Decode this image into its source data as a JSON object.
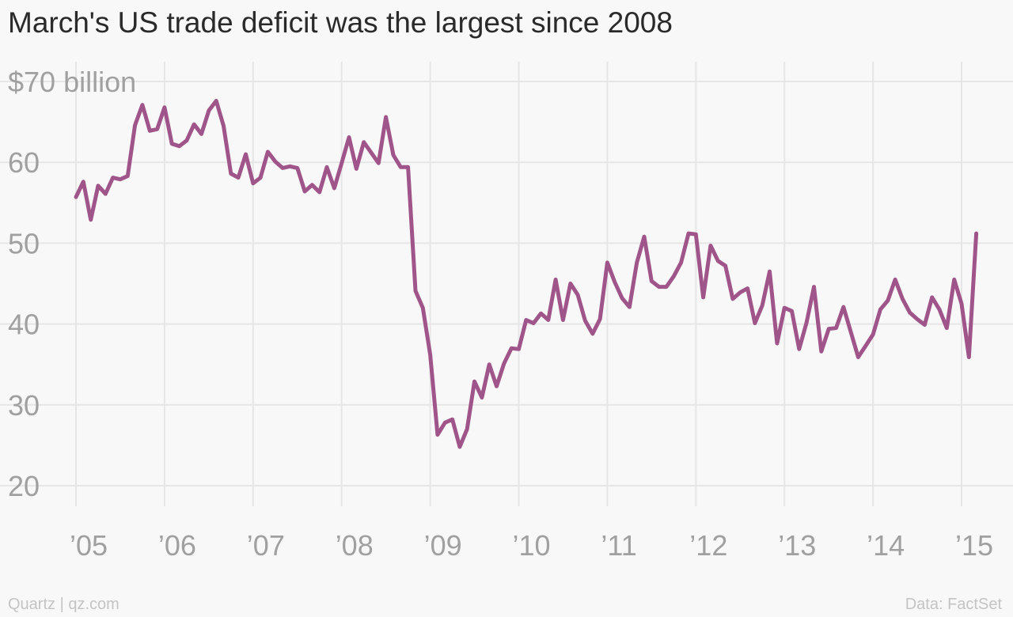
{
  "chart_data": {
    "type": "line",
    "title": "March's US trade deficit was the largest since 2008",
    "y_unit_label": "$70 billion",
    "ylim": [
      20,
      70
    ],
    "yticks": [
      20,
      30,
      40,
      50,
      60,
      70
    ],
    "ytick_labels": [
      "20",
      "30",
      "40",
      "50",
      "60",
      "$70 billion"
    ],
    "x_start": "2005-01",
    "x_end": "2015-03",
    "xticks": [
      "2005",
      "2006",
      "2007",
      "2008",
      "2009",
      "2010",
      "2011",
      "2012",
      "2013",
      "2014",
      "2015"
    ],
    "xtick_labels": [
      "’05",
      "’06",
      "’07",
      "’08",
      "’09",
      "’10",
      "’11",
      "’12",
      "’13",
      "’14",
      "’15"
    ],
    "grid": true,
    "series": [
      {
        "color": "#a0558a",
        "x": [
          "2005-01",
          "2005-02",
          "2005-03",
          "2005-04",
          "2005-05",
          "2005-06",
          "2005-07",
          "2005-08",
          "2005-09",
          "2005-10",
          "2005-11",
          "2005-12",
          "2006-01",
          "2006-02",
          "2006-03",
          "2006-04",
          "2006-05",
          "2006-06",
          "2006-07",
          "2006-08",
          "2006-09",
          "2006-10",
          "2006-11",
          "2006-12",
          "2007-01",
          "2007-02",
          "2007-03",
          "2007-04",
          "2007-05",
          "2007-06",
          "2007-07",
          "2007-08",
          "2007-09",
          "2007-10",
          "2007-11",
          "2007-12",
          "2008-01",
          "2008-02",
          "2008-03",
          "2008-04",
          "2008-05",
          "2008-06",
          "2008-07",
          "2008-08",
          "2008-09",
          "2008-10",
          "2008-11",
          "2008-12",
          "2009-01",
          "2009-02",
          "2009-03",
          "2009-04",
          "2009-05",
          "2009-06",
          "2009-07",
          "2009-08",
          "2009-09",
          "2009-10",
          "2009-11",
          "2009-12",
          "2010-01",
          "2010-02",
          "2010-03",
          "2010-04",
          "2010-05",
          "2010-06",
          "2010-07",
          "2010-08",
          "2010-09",
          "2010-10",
          "2010-11",
          "2010-12",
          "2011-01",
          "2011-02",
          "2011-03",
          "2011-04",
          "2011-05",
          "2011-06",
          "2011-07",
          "2011-08",
          "2011-09",
          "2011-10",
          "2011-11",
          "2011-12",
          "2012-01",
          "2012-02",
          "2012-03",
          "2012-04",
          "2012-05",
          "2012-06",
          "2012-07",
          "2012-08",
          "2012-09",
          "2012-10",
          "2012-11",
          "2012-12",
          "2013-01",
          "2013-02",
          "2013-03",
          "2013-04",
          "2013-05",
          "2013-06",
          "2013-07",
          "2013-08",
          "2013-09",
          "2013-10",
          "2013-11",
          "2013-12",
          "2014-01",
          "2014-02",
          "2014-03",
          "2014-04",
          "2014-05",
          "2014-06",
          "2014-07",
          "2014-08",
          "2014-09",
          "2014-10",
          "2014-11",
          "2014-12",
          "2015-01",
          "2015-02",
          "2015-03"
        ],
        "values": [
          55.7,
          57.6,
          52.9,
          57.1,
          56.1,
          58.1,
          57.9,
          58.3,
          64.6,
          67.1,
          63.9,
          64.1,
          66.8,
          62.3,
          62.0,
          62.7,
          64.7,
          63.5,
          66.4,
          67.6,
          64.5,
          58.6,
          58.1,
          61.0,
          57.4,
          58.1,
          61.3,
          60.1,
          59.3,
          59.5,
          59.3,
          56.4,
          57.2,
          56.3,
          59.4,
          56.8,
          59.9,
          63.1,
          59.2,
          62.5,
          61.2,
          59.9,
          65.6,
          60.9,
          59.4,
          59.4,
          44.1,
          42.0,
          36.2,
          26.3,
          27.8,
          28.2,
          24.8,
          27.0,
          32.9,
          30.9,
          35.0,
          32.3,
          35.1,
          37.0,
          36.9,
          40.5,
          40.1,
          41.3,
          40.5,
          45.5,
          40.5,
          45.0,
          43.6,
          40.4,
          38.8,
          40.6,
          47.6,
          45.2,
          43.2,
          42.1,
          47.6,
          50.8,
          45.3,
          44.6,
          44.6,
          45.9,
          47.6,
          51.2,
          51.1,
          43.3,
          49.7,
          47.8,
          47.2,
          43.1,
          43.9,
          44.4,
          40.1,
          42.3,
          46.5,
          37.6,
          42.0,
          41.6,
          36.9,
          40.2,
          44.6,
          36.6,
          39.4,
          39.5,
          42.1,
          39.0,
          35.9,
          37.3,
          38.7,
          41.8,
          42.9,
          45.5,
          43.1,
          41.4,
          40.6,
          39.9,
          43.3,
          41.8,
          39.5,
          45.5,
          42.5,
          35.9,
          51.2
        ]
      }
    ],
    "footer_left": "Quartz | qz.com",
    "footer_right": "Data: FactSet"
  }
}
